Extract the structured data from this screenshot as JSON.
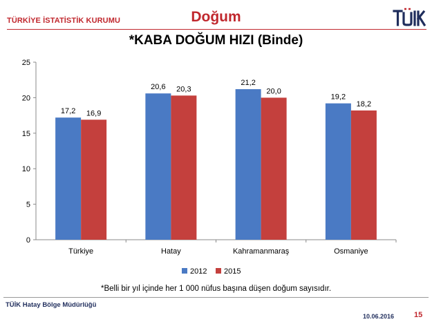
{
  "header": {
    "org_name": "TÜRKİYE İSTATİSTİK KURUMU",
    "section_title": "Doğum",
    "logo_text": "TÜİK"
  },
  "footnote": "*Belli bir yıl içinde her 1 000 nüfus başına düşen doğum sayısıdır.",
  "footer": {
    "office": "TÜİK Hatay Bölge Müdürlüğü",
    "date": "10.06.2016",
    "page": "15"
  },
  "colors": {
    "brand_red": "#c0272d",
    "series_2012": "#4a7ac4",
    "series_2015": "#c4403d"
  },
  "chart_data": {
    "type": "bar",
    "title": "*KABA DOĞUM HIZI (Binde)",
    "categories": [
      "Türkiye",
      "Hatay",
      "Kahramanmaraş",
      "Osmaniye"
    ],
    "series": [
      {
        "name": "2012",
        "values": [
          17.2,
          20.6,
          21.2,
          19.2
        ],
        "labels": [
          "17,2",
          "20,6",
          "21,2",
          "19,2"
        ]
      },
      {
        "name": "2015",
        "values": [
          16.9,
          20.3,
          20.0,
          18.2
        ],
        "labels": [
          "16,9",
          "20,3",
          "20,0",
          "18,2"
        ]
      }
    ],
    "ylim": [
      0,
      25
    ],
    "yticks": [
      0,
      5,
      10,
      15,
      20,
      25
    ],
    "grid": false,
    "legend": "bottom"
  }
}
